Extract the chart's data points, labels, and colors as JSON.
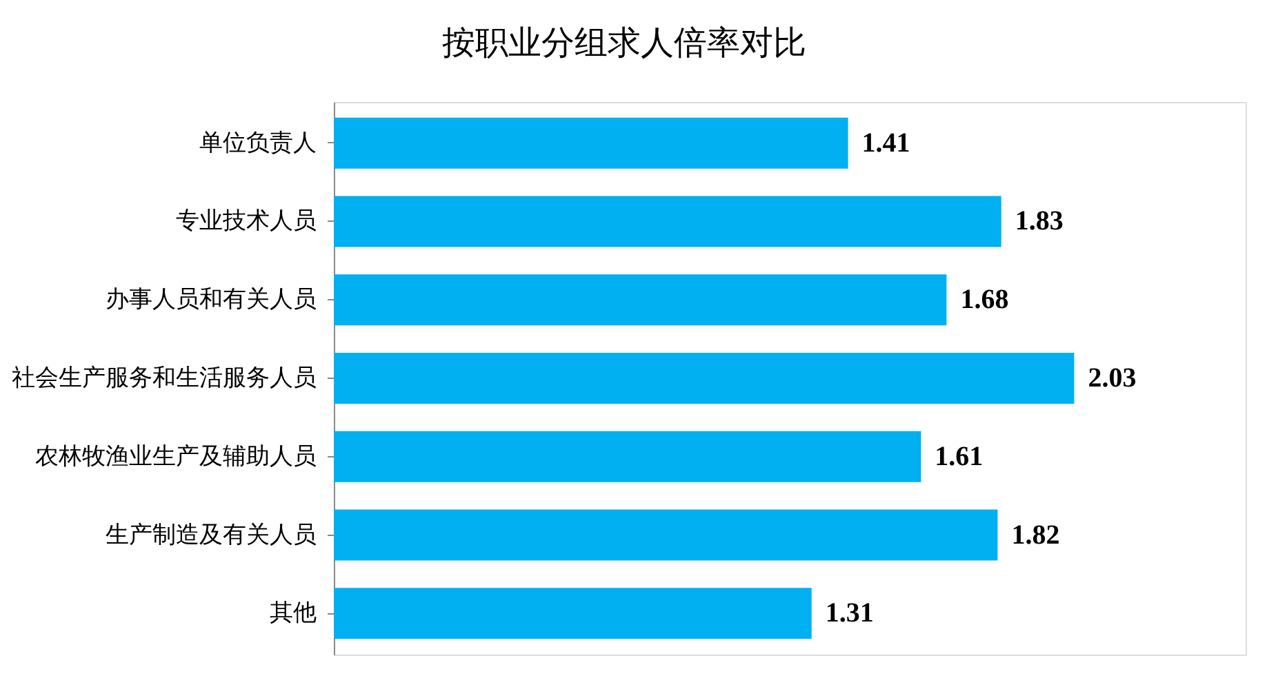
{
  "chart_data": {
    "type": "bar",
    "orientation": "horizontal",
    "title": "按职业分组求人倍率对比",
    "categories": [
      "单位负责人",
      "专业技术人员",
      "办事人员和有关人员",
      "社会生产服务和生活服务人员",
      "农林牧渔业生产及辅助人员",
      "生产制造及有关人员",
      "其他"
    ],
    "values": [
      1.41,
      1.83,
      1.68,
      2.03,
      1.61,
      1.82,
      1.31
    ],
    "color": "#00b0f0",
    "xlim": [
      0,
      2.5
    ],
    "data_labels": true
  }
}
